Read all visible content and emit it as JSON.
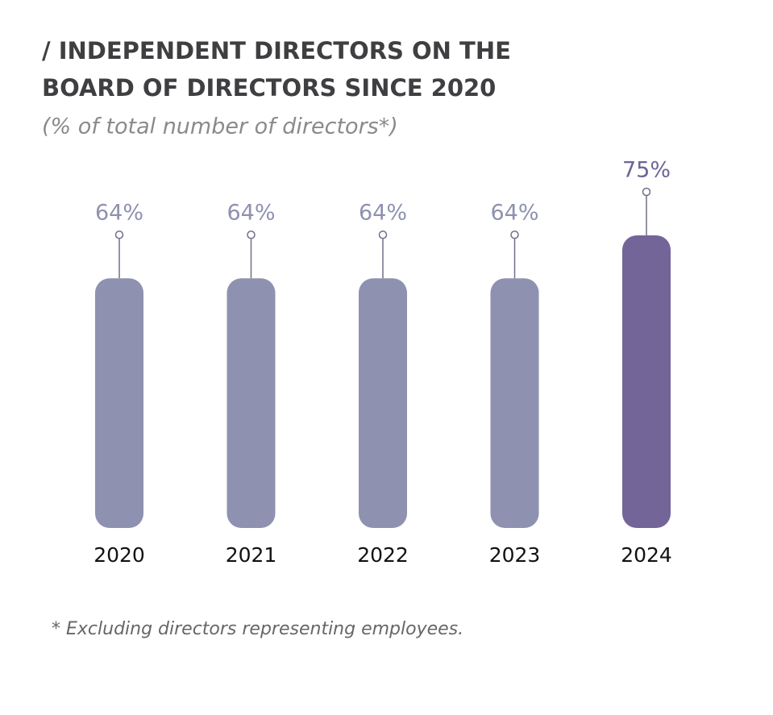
{
  "chart_data": {
    "type": "bar",
    "title": [
      "/ INDEPENDENT DIRECTORS ON THE",
      "BOARD OF DIRECTORS SINCE 2020"
    ],
    "subtitle": "(% of total number of directors*)",
    "categories": [
      "2020",
      "2021",
      "2022",
      "2023",
      "2024"
    ],
    "values": [
      64,
      64,
      64,
      64,
      75
    ],
    "value_labels": [
      "64%",
      "64%",
      "64%",
      "64%",
      "75%"
    ],
    "colors": [
      "#8e91b0",
      "#8e91b0",
      "#8e91b0",
      "#8e91b0",
      "#736598"
    ],
    "label_colors": [
      "#8e91b0",
      "#8e91b0",
      "#8e91b0",
      "#8e91b0",
      "#6c6498"
    ],
    "footnote": "* Excluding directors representing employees."
  }
}
